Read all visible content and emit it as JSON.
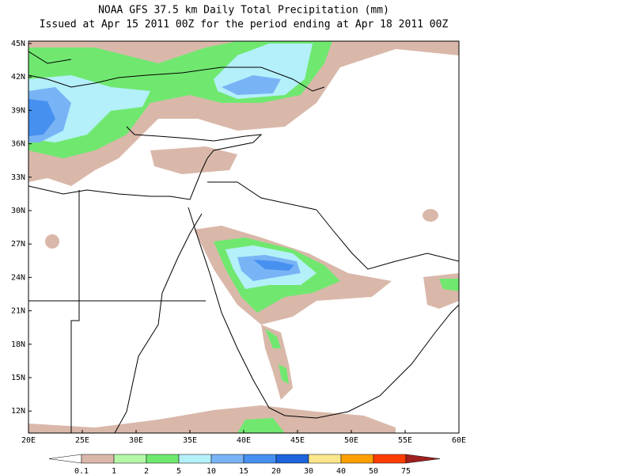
{
  "header": {
    "title": "NOAA GFS 37.5 km Daily Total Precipitation (mm)",
    "subtitle": "Issued at Apr 15 2011 00Z for the period ending at Apr 18 2011 00Z"
  },
  "map": {
    "lat_labels": [
      "45N",
      "42N",
      "39N",
      "36N",
      "33N",
      "30N",
      "27N",
      "24N",
      "21N",
      "18N",
      "15N",
      "12N"
    ],
    "lon_labels": [
      "20E",
      "25E",
      "30E",
      "35E",
      "40E",
      "45E",
      "50E",
      "55E",
      "60E"
    ]
  },
  "colorbar": {
    "colors": [
      "#ffffff",
      "#d9b8aa",
      "#b4f8a8",
      "#70e870",
      "#b4f0fa",
      "#78b4f5",
      "#4690f0",
      "#1e64dc",
      "#fae68c",
      "#ffa000",
      "#ff3c00",
      "#a02020"
    ],
    "labels": [
      "0.1",
      "1",
      "2",
      "5",
      "10",
      "15",
      "20",
      "30",
      "40",
      "50",
      "75"
    ]
  }
}
